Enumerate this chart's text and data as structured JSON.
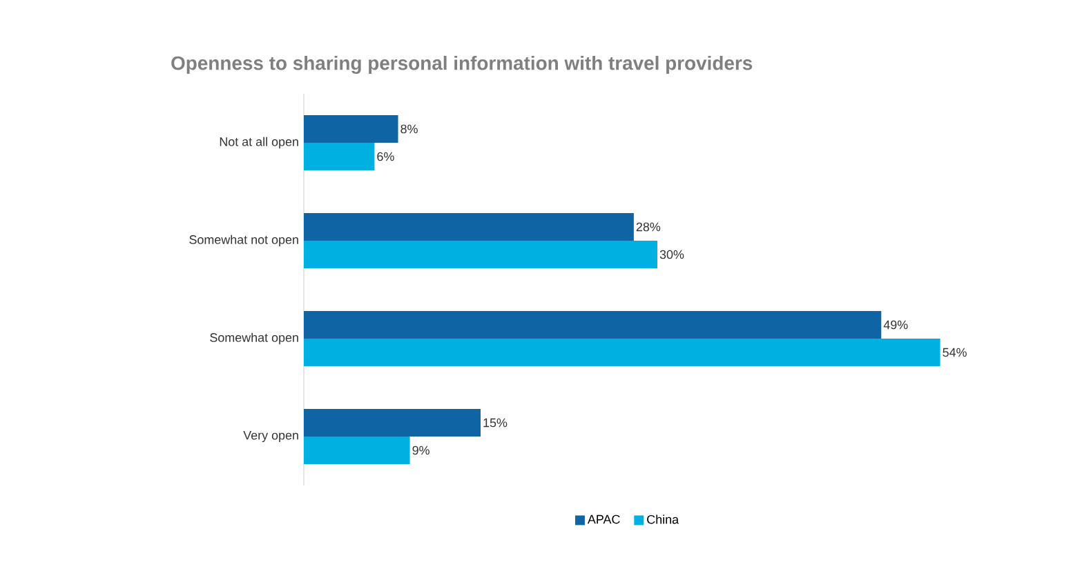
{
  "chart_data": {
    "type": "bar",
    "orientation": "horizontal",
    "title": "Openness to sharing personal information with travel providers",
    "categories": [
      "Not at all open",
      "Somewhat not open",
      "Somewhat open",
      "Very open"
    ],
    "series": [
      {
        "name": "APAC",
        "color": "#0f65a3",
        "values": [
          8,
          28,
          49,
          15
        ],
        "value_labels": [
          "8%",
          "28%",
          "49%",
          "15%"
        ]
      },
      {
        "name": "China",
        "color": "#00b0e0",
        "values": [
          6,
          30,
          54,
          9
        ],
        "value_labels": [
          "6%",
          "30%",
          "54%",
          "9%"
        ]
      }
    ],
    "legend": "bottom"
  }
}
